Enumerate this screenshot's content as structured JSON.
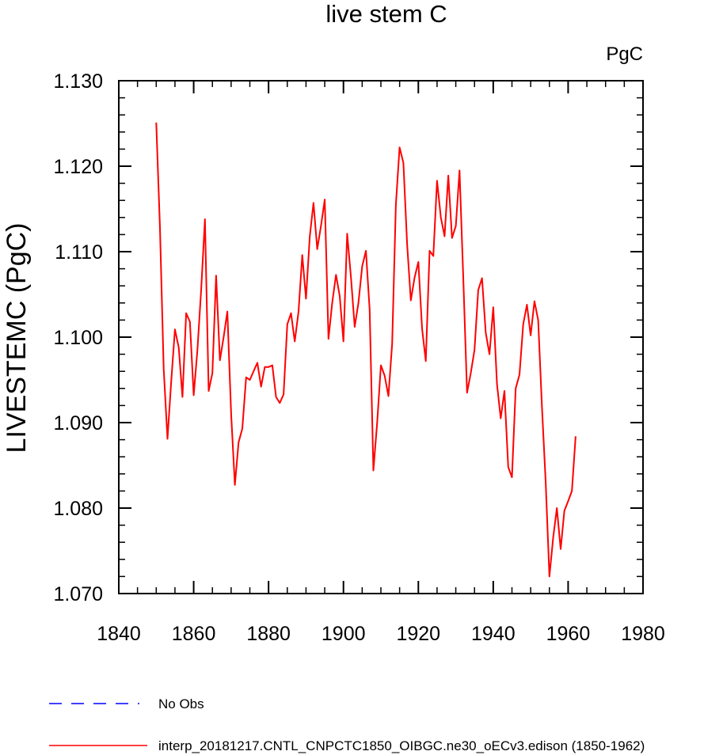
{
  "chart_data": {
    "type": "line",
    "title": "live stem C",
    "units": "PgC",
    "xlabel": "",
    "ylabel": "LIVESTEMC  (PgC)",
    "xlim": [
      1840,
      1980
    ],
    "ylim": [
      1.07,
      1.13
    ],
    "xticks": [
      1840,
      1860,
      1880,
      1900,
      1920,
      1940,
      1960,
      1980
    ],
    "yticks": [
      "1.070",
      "1.080",
      "1.090",
      "1.100",
      "1.110",
      "1.120",
      "1.130"
    ],
    "yticks_values": [
      1.07,
      1.08,
      1.09,
      1.1,
      1.11,
      1.12,
      1.13
    ],
    "series": [
      {
        "name": "interp_20181217.CNTL_CNPCTC1850_OIBGC.ne30_oECv3.edison (1850-1962)",
        "color": "#ff0000",
        "style": "solid",
        "x": [
          1850,
          1851,
          1852,
          1853,
          1854,
          1855,
          1856,
          1857,
          1858,
          1859,
          1860,
          1861,
          1862,
          1863,
          1864,
          1865,
          1866,
          1867,
          1868,
          1869,
          1870,
          1871,
          1872,
          1873,
          1874,
          1875,
          1876,
          1877,
          1878,
          1879,
          1880,
          1881,
          1882,
          1883,
          1884,
          1885,
          1886,
          1887,
          1888,
          1889,
          1890,
          1891,
          1892,
          1893,
          1894,
          1895,
          1896,
          1897,
          1898,
          1899,
          1900,
          1901,
          1902,
          1903,
          1904,
          1905,
          1906,
          1907,
          1908,
          1909,
          1910,
          1911,
          1912,
          1913,
          1914,
          1915,
          1916,
          1917,
          1918,
          1919,
          1920,
          1921,
          1922,
          1923,
          1924,
          1925,
          1926,
          1927,
          1928,
          1929,
          1930,
          1931,
          1932,
          1933,
          1934,
          1935,
          1936,
          1937,
          1938,
          1939,
          1940,
          1941,
          1942,
          1943,
          1944,
          1945,
          1946,
          1947,
          1948,
          1949,
          1950,
          1951,
          1952,
          1953,
          1954,
          1955,
          1956,
          1957,
          1958,
          1959,
          1960,
          1961,
          1962
        ],
        "values": [
          1.1251,
          1.1128,
          1.0963,
          1.0881,
          1.0948,
          1.1009,
          1.0988,
          1.093,
          1.1028,
          1.1018,
          1.0932,
          1.0985,
          1.1055,
          1.1138,
          1.0937,
          1.0958,
          1.1072,
          1.0973,
          1.1,
          1.103,
          1.091,
          1.0827,
          1.0877,
          1.0893,
          1.0953,
          1.095,
          1.096,
          1.097,
          1.0942,
          1.0965,
          1.0965,
          1.0967,
          1.093,
          1.0923,
          1.0933,
          1.1015,
          1.1028,
          1.0995,
          1.103,
          1.1096,
          1.1045,
          1.1118,
          1.1157,
          1.1103,
          1.113,
          1.1161,
          1.0998,
          1.104,
          1.1073,
          1.1048,
          1.0995,
          1.1121,
          1.107,
          1.1012,
          1.104,
          1.1083,
          1.1101,
          1.1032,
          1.0844,
          1.09,
          1.0967,
          1.0955,
          1.0931,
          1.0992,
          1.1155,
          1.1222,
          1.1204,
          1.1109,
          1.1043,
          1.107,
          1.1088,
          1.101,
          1.0972,
          1.1101,
          1.1095,
          1.1183,
          1.114,
          1.1118,
          1.1189,
          1.1116,
          1.113,
          1.1195,
          1.107,
          1.0935,
          1.0958,
          1.0985,
          1.1055,
          1.1069,
          1.1005,
          1.098,
          1.1035,
          1.0945,
          1.0905,
          1.0937,
          1.0848,
          1.0836,
          1.094,
          1.0956,
          1.1015,
          1.1038,
          1.1002,
          1.1042,
          1.102,
          1.092,
          1.083,
          1.072,
          1.0765,
          1.08,
          1.0752,
          1.0797,
          1.0808,
          1.082,
          1.0884
        ]
      }
    ],
    "legend": [
      {
        "label": "No Obs",
        "color": "#0000ff",
        "style": "dashed"
      },
      {
        "label": "interp_20181217.CNTL_CNPCTC1850_OIBGC.ne30_oECv3.edison (1850-1962)",
        "color": "#ff0000",
        "style": "solid"
      }
    ],
    "legend_position": "bottom-left",
    "grid": false
  }
}
